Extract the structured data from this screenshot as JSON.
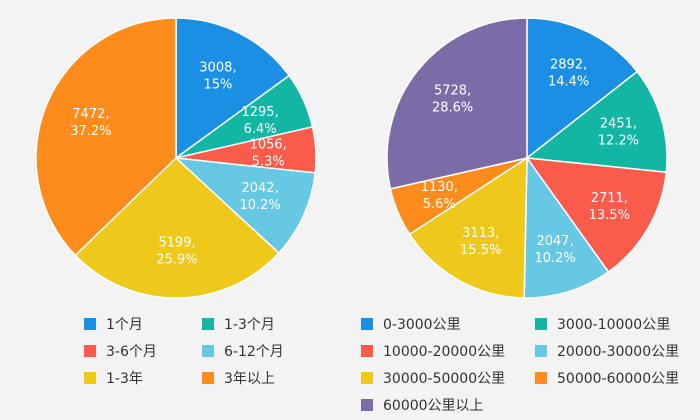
{
  "chart_data": [
    {
      "type": "pie",
      "title": "",
      "slices": [
        {
          "label": "1个月",
          "value": 3008,
          "percent": "15%",
          "color": "#1a8fe3"
        },
        {
          "label": "1-3个月",
          "value": 1295,
          "percent": "6.4%",
          "color": "#13b5a3"
        },
        {
          "label": "3-6个月",
          "value": 1056,
          "percent": "5.3%",
          "color": "#fb5b4b"
        },
        {
          "label": "6-12个月",
          "value": 2042,
          "percent": "10.2%",
          "color": "#67c8e3"
        },
        {
          "label": "1-3年",
          "value": 5199,
          "percent": "25.9%",
          "color": "#efc81c"
        },
        {
          "label": "3年以上",
          "value": 7472,
          "percent": "37.2%",
          "color": "#fd8c1c"
        }
      ],
      "legend_placement": "bottom"
    },
    {
      "type": "pie",
      "title": "",
      "slices": [
        {
          "label": "0-3000公里",
          "value": 2892,
          "percent": "14.4%",
          "color": "#1a8fe3"
        },
        {
          "label": "3000-10000公里",
          "value": 2451,
          "percent": "12.2%",
          "color": "#13b5a3"
        },
        {
          "label": "10000-20000公里",
          "value": 2711,
          "percent": "13.5%",
          "color": "#fb5b4b"
        },
        {
          "label": "20000-30000公里",
          "value": 2047,
          "percent": "10.2%",
          "color": "#67c8e3"
        },
        {
          "label": "30000-50000公里",
          "value": 3113,
          "percent": "15.5%",
          "color": "#efc81c"
        },
        {
          "label": "50000-60000公里",
          "value": 1130,
          "percent": "5.6%",
          "color": "#fd8c1c"
        },
        {
          "label": "60000公里以上",
          "value": 5728,
          "percent": "28.6%",
          "color": "#7b6ba6"
        }
      ],
      "legend_placement": "bottom"
    }
  ]
}
